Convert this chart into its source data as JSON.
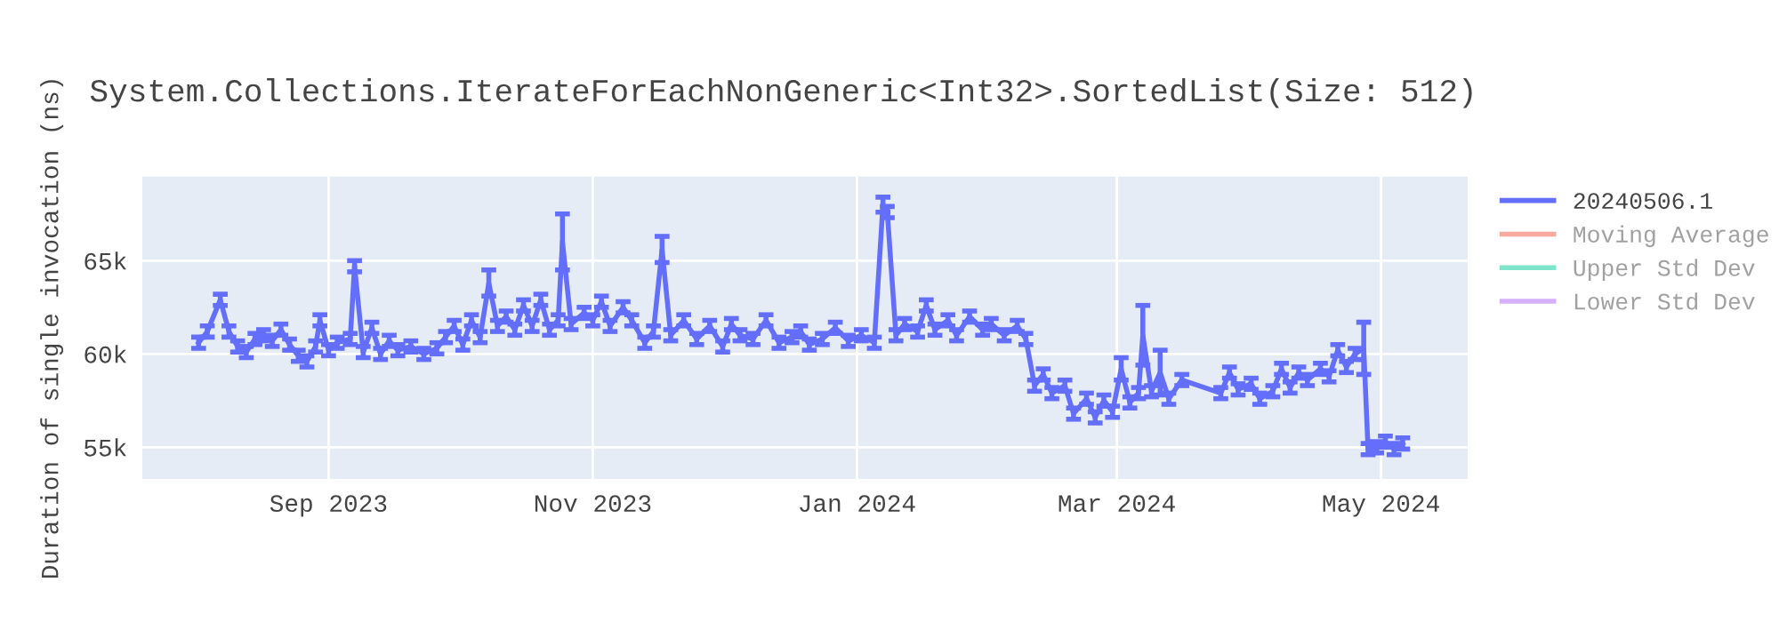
{
  "chart_data": {
    "type": "line",
    "title": "System.Collections.IterateForEachNonGeneric<Int32>.SortedList(Size: 512)",
    "ylabel": "Duration of single invocation (ns)",
    "x": [
      "2023-08-02",
      "2023-08-04",
      "2023-08-07",
      "2023-08-09",
      "2023-08-11",
      "2023-08-13",
      "2023-08-15",
      "2023-08-17",
      "2023-08-19",
      "2023-08-21",
      "2023-08-23",
      "2023-08-25",
      "2023-08-27",
      "2023-08-29",
      "2023-08-30",
      "2023-09-01",
      "2023-09-03",
      "2023-09-06",
      "2023-09-07",
      "2023-09-09",
      "2023-09-11",
      "2023-09-13",
      "2023-09-15",
      "2023-09-17",
      "2023-09-20",
      "2023-09-23",
      "2023-09-26",
      "2023-09-28",
      "2023-09-30",
      "2023-10-02",
      "2023-10-04",
      "2023-10-06",
      "2023-10-08",
      "2023-10-10",
      "2023-10-12",
      "2023-10-14",
      "2023-10-16",
      "2023-10-18",
      "2023-10-20",
      "2023-10-22",
      "2023-10-24",
      "2023-10-25",
      "2023-10-27",
      "2023-10-30",
      "2023-11-01",
      "2023-11-03",
      "2023-11-05",
      "2023-11-08",
      "2023-11-10",
      "2023-11-13",
      "2023-11-15",
      "2023-11-17",
      "2023-11-19",
      "2023-11-22",
      "2023-11-25",
      "2023-11-28",
      "2023-12-01",
      "2023-12-03",
      "2023-12-05",
      "2023-12-08",
      "2023-12-11",
      "2023-12-14",
      "2023-12-17",
      "2023-12-19",
      "2023-12-21",
      "2023-12-24",
      "2023-12-27",
      "2023-12-30",
      "2024-01-02",
      "2024-01-05",
      "2024-01-07",
      "2024-01-08",
      "2024-01-10",
      "2024-01-12",
      "2024-01-15",
      "2024-01-17",
      "2024-01-19",
      "2024-01-22",
      "2024-01-24",
      "2024-01-27",
      "2024-01-30",
      "2024-02-01",
      "2024-02-04",
      "2024-02-07",
      "2024-02-09",
      "2024-02-11",
      "2024-02-13",
      "2024-02-15",
      "2024-02-18",
      "2024-02-20",
      "2024-02-23",
      "2024-02-25",
      "2024-02-27",
      "2024-02-29",
      "2024-03-02",
      "2024-03-04",
      "2024-03-06",
      "2024-03-07",
      "2024-03-09",
      "2024-03-11",
      "2024-03-13",
      "2024-03-16",
      "2024-03-25",
      "2024-03-27",
      "2024-03-29",
      "2024-04-01",
      "2024-04-03",
      "2024-04-06",
      "2024-04-08",
      "2024-04-10",
      "2024-04-12",
      "2024-04-14",
      "2024-04-17",
      "2024-04-19",
      "2024-04-21",
      "2024-04-23",
      "2024-04-25",
      "2024-04-27",
      "2024-04-28",
      "2024-04-30",
      "2024-05-02",
      "2024-05-04",
      "2024-05-06"
    ],
    "series": [
      {
        "name": "20240506.1",
        "color": "#636efa",
        "values": [
          60600,
          61200,
          62900,
          61200,
          60400,
          60100,
          60800,
          61000,
          60700,
          61300,
          60500,
          59900,
          59600,
          60400,
          61800,
          60200,
          60600,
          60800,
          64700,
          60100,
          61400,
          60000,
          60700,
          60200,
          60400,
          60000,
          60300,
          60900,
          61500,
          60500,
          61800,
          60900,
          63800,
          61500,
          62000,
          61300,
          62600,
          61500,
          62900,
          61300,
          61800,
          66000,
          61600,
          62200,
          61800,
          62800,
          61500,
          62500,
          61800,
          60600,
          61200,
          65600,
          61000,
          61800,
          60800,
          61500,
          60400,
          61600,
          61000,
          60800,
          61800,
          60600,
          60900,
          61200,
          60500,
          60800,
          61400,
          60700,
          61000,
          60600,
          68000,
          67600,
          61000,
          61600,
          61200,
          62600,
          61300,
          61800,
          61000,
          62000,
          61300,
          61600,
          61000,
          61500,
          60800,
          58300,
          58900,
          57900,
          58300,
          56800,
          57600,
          56600,
          57500,
          56900,
          59200,
          57400,
          57900,
          61000,
          58000,
          59000,
          57600,
          58600,
          57900,
          59000,
          58100,
          58400,
          57600,
          58000,
          59200,
          58200,
          59000,
          58600,
          59200,
          58800,
          60200,
          59300,
          60000,
          60300,
          54900,
          55000,
          55300,
          54900,
          55200
        ],
        "errors": [
          300,
          300,
          300,
          300,
          300,
          300,
          300,
          300,
          300,
          300,
          300,
          300,
          300,
          300,
          300,
          300,
          300,
          300,
          300,
          300,
          300,
          300,
          300,
          300,
          300,
          300,
          300,
          300,
          300,
          300,
          300,
          300,
          700,
          300,
          300,
          300,
          300,
          300,
          300,
          300,
          300,
          1500,
          300,
          300,
          300,
          300,
          300,
          300,
          300,
          300,
          300,
          700,
          300,
          300,
          300,
          300,
          300,
          300,
          300,
          300,
          300,
          300,
          300,
          300,
          300,
          300,
          300,
          300,
          300,
          300,
          400,
          300,
          300,
          300,
          300,
          300,
          300,
          300,
          300,
          300,
          300,
          300,
          300,
          300,
          300,
          300,
          300,
          300,
          300,
          300,
          300,
          300,
          300,
          300,
          600,
          300,
          300,
          1600,
          300,
          1200,
          300,
          300,
          300,
          300,
          300,
          300,
          300,
          300,
          300,
          300,
          300,
          300,
          300,
          300,
          300,
          300,
          300,
          1400,
          300,
          300,
          300,
          300,
          300
        ]
      },
      {
        "name": "Moving Average",
        "color": "#ef553b",
        "values": [
          null,
          null,
          null,
          null,
          null,
          null,
          null,
          null,
          null,
          null,
          null,
          null,
          null,
          null,
          null,
          null,
          null,
          null,
          null,
          null,
          null,
          null,
          null,
          null,
          null,
          null,
          null,
          null,
          null,
          null,
          null,
          null,
          null,
          null,
          null,
          null,
          null,
          null,
          null,
          null,
          null,
          null,
          null,
          null,
          null,
          null,
          null,
          null,
          null,
          null,
          null,
          null,
          null,
          null,
          null,
          null,
          null,
          null,
          null,
          null,
          null,
          null,
          null,
          null,
          null,
          null,
          null,
          null,
          null,
          null,
          null,
          null,
          null,
          null,
          null,
          null,
          null,
          null,
          null,
          null,
          null,
          null,
          null,
          null,
          null,
          null,
          null,
          null,
          null,
          null,
          null,
          null,
          null,
          null,
          null,
          null,
          null,
          null,
          null,
          null,
          null,
          null,
          null,
          null,
          null,
          null,
          null,
          null,
          null,
          null,
          null,
          null,
          null,
          null,
          null,
          null,
          null,
          null,
          null,
          null,
          null,
          null,
          null
        ]
      },
      {
        "name": "Upper Std Dev",
        "color": "#00cc96",
        "values": [
          null,
          null,
          null,
          null,
          null,
          null,
          null,
          null,
          null,
          null,
          null,
          null,
          null,
          null,
          null,
          null,
          null,
          null,
          null,
          null,
          null,
          null,
          null,
          null,
          null,
          null,
          null,
          null,
          null,
          null,
          null,
          null,
          null,
          null,
          null,
          null,
          null,
          null,
          null,
          null,
          null,
          null,
          null,
          null,
          null,
          null,
          null,
          null,
          null,
          null,
          null,
          null,
          null,
          null,
          null,
          null,
          null,
          null,
          null,
          null,
          null,
          null,
          null,
          null,
          null,
          null,
          null,
          null,
          null,
          null,
          null,
          null,
          null,
          null,
          null,
          null,
          null,
          null,
          null,
          null,
          null,
          null,
          null,
          null,
          null,
          null,
          null,
          null,
          null,
          null,
          null,
          null,
          null,
          null,
          null,
          null,
          null,
          null,
          null,
          null,
          null,
          null,
          null,
          null,
          null,
          null,
          null,
          null,
          null,
          null,
          null,
          null,
          null,
          null,
          null,
          null,
          null,
          null,
          null,
          null,
          null,
          null,
          null
        ]
      },
      {
        "name": "Lower Std Dev",
        "color": "#ab63fa",
        "values": [
          null,
          null,
          null,
          null,
          null,
          null,
          null,
          null,
          null,
          null,
          null,
          null,
          null,
          null,
          null,
          null,
          null,
          null,
          null,
          null,
          null,
          null,
          null,
          null,
          null,
          null,
          null,
          null,
          null,
          null,
          null,
          null,
          null,
          null,
          null,
          null,
          null,
          null,
          null,
          null,
          null,
          null,
          null,
          null,
          null,
          null,
          null,
          null,
          null,
          null,
          null,
          null,
          null,
          null,
          null,
          null,
          null,
          null,
          null,
          null,
          null,
          null,
          null,
          null,
          null,
          null,
          null,
          null,
          null,
          null,
          null,
          null,
          null,
          null,
          null,
          null,
          null,
          null,
          null,
          null,
          null,
          null,
          null,
          null,
          null,
          null,
          null,
          null,
          null,
          null,
          null,
          null,
          null,
          null,
          null,
          null,
          null,
          null,
          null,
          null,
          null,
          null,
          null,
          null,
          null,
          null,
          null,
          null,
          null,
          null,
          null,
          null,
          null,
          null,
          null,
          null,
          null,
          null,
          null,
          null,
          null,
          null,
          null
        ]
      }
    ],
    "xlim": [
      "2023-07-20",
      "2024-05-21"
    ],
    "xticks": [
      {
        "value": "2023-09-01",
        "label": "Sep 2023"
      },
      {
        "value": "2023-11-01",
        "label": "Nov 2023"
      },
      {
        "value": "2024-01-01",
        "label": "Jan 2024"
      },
      {
        "value": "2024-03-01",
        "label": "Mar 2024"
      },
      {
        "value": "2024-05-01",
        "label": "May 2024"
      }
    ],
    "ylim": [
      53300,
      69500
    ],
    "yticks": [
      {
        "value": 55000,
        "label": "55k"
      },
      {
        "value": 60000,
        "label": "60k"
      },
      {
        "value": 65000,
        "label": "65k"
      }
    ],
    "grid": true,
    "legend": "top right",
    "marker": "none",
    "line_style": "solid"
  }
}
